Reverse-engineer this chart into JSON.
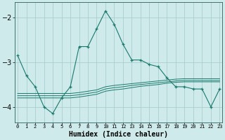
{
  "xlabel": "Humidex (Indice chaleur)",
  "x": [
    0,
    1,
    2,
    3,
    4,
    5,
    6,
    7,
    8,
    9,
    10,
    11,
    12,
    13,
    14,
    15,
    16,
    17,
    18,
    19,
    20,
    21,
    22,
    23
  ],
  "y_main": [
    -2.85,
    -3.3,
    -3.55,
    -4.0,
    -4.15,
    -3.8,
    -3.55,
    -2.65,
    -2.65,
    -2.25,
    -1.85,
    -2.15,
    -2.6,
    -2.95,
    -2.95,
    -3.05,
    -3.1,
    -3.35,
    -3.55,
    -3.55,
    -3.6,
    -3.6,
    -4.0,
    -3.6
  ],
  "y_band1": [
    -3.7,
    -3.7,
    -3.7,
    -3.7,
    -3.7,
    -3.7,
    -3.7,
    -3.68,
    -3.65,
    -3.62,
    -3.55,
    -3.52,
    -3.5,
    -3.48,
    -3.46,
    -3.44,
    -3.42,
    -3.4,
    -3.38,
    -3.37,
    -3.37,
    -3.37,
    -3.37,
    -3.37
  ],
  "y_band2": [
    -3.75,
    -3.75,
    -3.75,
    -3.75,
    -3.75,
    -3.75,
    -3.75,
    -3.73,
    -3.7,
    -3.67,
    -3.6,
    -3.57,
    -3.55,
    -3.52,
    -3.5,
    -3.48,
    -3.46,
    -3.44,
    -3.42,
    -3.41,
    -3.41,
    -3.41,
    -3.41,
    -3.41
  ],
  "y_band3": [
    -3.8,
    -3.8,
    -3.8,
    -3.8,
    -3.8,
    -3.8,
    -3.8,
    -3.78,
    -3.75,
    -3.72,
    -3.65,
    -3.62,
    -3.6,
    -3.57,
    -3.54,
    -3.52,
    -3.5,
    -3.47,
    -3.45,
    -3.44,
    -3.44,
    -3.44,
    -3.44,
    -3.44
  ],
  "line_color": "#1a7a6e",
  "bg_color": "#ceeaea",
  "grid_color": "#aacece",
  "ylim": [
    -4.35,
    -1.65
  ],
  "yticks": [
    -4,
    -3,
    -2
  ],
  "xlim": [
    -0.3,
    23.3
  ],
  "figsize": [
    3.2,
    2.0
  ],
  "dpi": 100
}
